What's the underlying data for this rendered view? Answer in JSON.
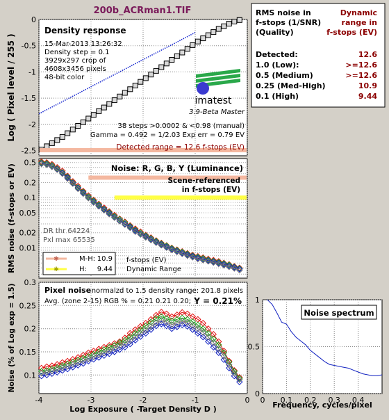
{
  "title": "200b_ACRman1.TIF",
  "info_table": {
    "head_left": [
      "RMS noise in",
      "f-stops (1/SNR)",
      "(Quality)"
    ],
    "head_right": [
      "Dynamic",
      "range in",
      "f-stops (EV)"
    ],
    "rows": [
      {
        "label": "Detected:",
        "value": "12.6"
      },
      {
        "label": "1.0  (Low):",
        "value": ">=12.6"
      },
      {
        "label": "0.5  (Medium)",
        "value": ">=12.6"
      },
      {
        "label": "0.25 (Med-High)",
        "value": "10.9"
      },
      {
        "label": "0.1  (High)",
        "value": "9.44"
      }
    ]
  },
  "colors": {
    "background": "#d4d0c8",
    "plot_bg": "#ffffff",
    "title_color": "#7a1a5a",
    "dark_red": "#8b0000",
    "red": "#e01010",
    "green": "#20a020",
    "blue": "#1020c0",
    "gray": "#707070",
    "salmon": "#f4b8a0",
    "yellow": "#ffff44"
  },
  "chart_data": [
    {
      "type": "line",
      "title": "Density response",
      "xlabel": "",
      "ylabel": "Log ( Pixel level / 255 )",
      "xlim": [
        -4,
        0
      ],
      "ylim": [
        -2.6,
        0
      ],
      "xticks": [
        "-4",
        "-3",
        "-2",
        "-1",
        "0"
      ],
      "yticks": [
        "0",
        "-0.5",
        "-1",
        "-1.5",
        "-2",
        "-2.5"
      ],
      "info_lines": [
        "15-Mar-2013 13:26:32",
        "Density step = 0.1",
        "3929x297 crop of",
        "4608x3456 pixels",
        "48-bit color"
      ],
      "logo": "imatest",
      "logo_caption": "3.9-Beta  Master",
      "stats_lines": [
        "38 steps >0.0002 & <0.98 (manual)",
        "Gamma = 0.492 = 1/2.03  Exp err = 0.79 EV"
      ],
      "detected_range": "Detected range = 12.6 f-stops (EV)",
      "series": [
        {
          "type": "squares",
          "x": [
            -3.95,
            -3.85,
            -3.75,
            -3.65,
            -3.55,
            -3.45,
            -3.35,
            -3.25,
            -3.15,
            -3.05,
            -2.95,
            -2.85,
            -2.75,
            -2.65,
            -2.55,
            -2.45,
            -2.35,
            -2.25,
            -2.15,
            -2.05,
            -1.95,
            -1.85,
            -1.75,
            -1.65,
            -1.55,
            -1.45,
            -1.35,
            -1.25,
            -1.15,
            -1.05,
            -0.95,
            -0.85,
            -0.75,
            -0.65,
            -0.55,
            -0.45,
            -0.35,
            -0.25,
            -0.15
          ],
          "y": [
            -2.48,
            -2.42,
            -2.36,
            -2.3,
            -2.24,
            -2.17,
            -2.1,
            -2.03,
            -1.96,
            -1.89,
            -1.82,
            -1.75,
            -1.68,
            -1.61,
            -1.54,
            -1.47,
            -1.4,
            -1.33,
            -1.26,
            -1.19,
            -1.12,
            -1.05,
            -0.98,
            -0.91,
            -0.84,
            -0.77,
            -0.7,
            -0.63,
            -0.56,
            -0.49,
            -0.42,
            -0.36,
            -0.3,
            -0.24,
            -0.18,
            -0.13,
            -0.08,
            -0.04,
            -0.01
          ]
        },
        {
          "type": "dotted-fit",
          "x": [
            -4.0,
            -1.0
          ],
          "y": [
            -1.8,
            -0.25
          ]
        }
      ]
    },
    {
      "type": "line",
      "title": "Noise: R, G, B, Y (Luminance)",
      "xlabel": "",
      "ylabel": "RMS noise (f-stops or EV)",
      "scale": "log",
      "xlim": [
        -4,
        0
      ],
      "ylim": [
        0.0025,
        0.6
      ],
      "yticks": [
        "0.5",
        "0.2",
        "0.1",
        "0.05",
        "0.02",
        "0.01"
      ],
      "annotations": [
        "Scene-referenced",
        "in f-stops (EV)"
      ],
      "dr_text": [
        "DR thr 64224",
        "Pxl max 65535"
      ],
      "legend": [
        {
          "name": "M-H:",
          "value": "10.9"
        },
        {
          "name": "H:",
          "value": "9.44"
        }
      ],
      "legend_caption": [
        "f-stops (EV)",
        "Dynamic Range"
      ],
      "threshold_bands": [
        {
          "name": "M-H",
          "y": 0.25,
          "x_start": -3.05
        },
        {
          "name": "H",
          "y": 0.1,
          "x_start": -2.55
        }
      ],
      "series": [
        {
          "name": "R",
          "x": [
            -3.95,
            -3.85,
            -3.75,
            -3.65,
            -3.55,
            -3.45,
            -3.35,
            -3.25,
            -3.15,
            -3.05,
            -2.95,
            -2.85,
            -2.75,
            -2.65,
            -2.55,
            -2.45,
            -2.35,
            -2.25,
            -2.15,
            -2.05,
            -1.95,
            -1.85,
            -1.75,
            -1.65,
            -1.55,
            -1.45,
            -1.35,
            -1.25,
            -1.15,
            -1.05,
            -0.95,
            -0.85,
            -0.75,
            -0.65,
            -0.55,
            -0.45,
            -0.35,
            -0.25,
            -0.15
          ],
          "y": [
            0.52,
            0.5,
            0.46,
            0.4,
            0.34,
            0.27,
            0.21,
            0.17,
            0.135,
            0.11,
            0.09,
            0.075,
            0.063,
            0.053,
            0.045,
            0.038,
            0.033,
            0.028,
            0.024,
            0.021,
            0.018,
            0.016,
            0.014,
            0.0125,
            0.0112,
            0.01,
            0.0092,
            0.0085,
            0.0078,
            0.0072,
            0.0068,
            0.0064,
            0.006,
            0.0057,
            0.0054,
            0.005,
            0.0047,
            0.0043,
            0.004
          ]
        },
        {
          "name": "G",
          "x": [
            -3.95,
            -3.85,
            -3.75,
            -3.65,
            -3.55,
            -3.45,
            -3.35,
            -3.25,
            -3.15,
            -3.05,
            -2.95,
            -2.85,
            -2.75,
            -2.65,
            -2.55,
            -2.45,
            -2.35,
            -2.25,
            -2.15,
            -2.05,
            -1.95,
            -1.85,
            -1.75,
            -1.65,
            -1.55,
            -1.45,
            -1.35,
            -1.25,
            -1.15,
            -1.05,
            -0.95,
            -0.85,
            -0.75,
            -0.65,
            -0.55,
            -0.45,
            -0.35,
            -0.25,
            -0.15
          ],
          "y": [
            0.5,
            0.48,
            0.44,
            0.38,
            0.32,
            0.26,
            0.2,
            0.16,
            0.13,
            0.105,
            0.087,
            0.072,
            0.06,
            0.051,
            0.043,
            0.037,
            0.032,
            0.027,
            0.023,
            0.02,
            0.0175,
            0.0155,
            0.0137,
            0.0122,
            0.011,
            0.0098,
            0.009,
            0.0083,
            0.0076,
            0.007,
            0.0066,
            0.0062,
            0.0058,
            0.0055,
            0.0052,
            0.0049,
            0.0046,
            0.0042,
            0.0039
          ]
        },
        {
          "name": "B",
          "x": [
            -3.95,
            -3.85,
            -3.75,
            -3.65,
            -3.55,
            -3.45,
            -3.35,
            -3.25,
            -3.15,
            -3.05,
            -2.95,
            -2.85,
            -2.75,
            -2.65,
            -2.55,
            -2.45,
            -2.35,
            -2.25,
            -2.15,
            -2.05,
            -1.95,
            -1.85,
            -1.75,
            -1.65,
            -1.55,
            -1.45,
            -1.35,
            -1.25,
            -1.15,
            -1.05,
            -0.95,
            -0.85,
            -0.75,
            -0.65,
            -0.55,
            -0.45,
            -0.35,
            -0.25,
            -0.15
          ],
          "y": [
            0.48,
            0.46,
            0.42,
            0.37,
            0.31,
            0.25,
            0.195,
            0.155,
            0.125,
            0.1,
            0.083,
            0.069,
            0.058,
            0.049,
            0.041,
            0.035,
            0.03,
            0.026,
            0.022,
            0.019,
            0.0168,
            0.0148,
            0.0131,
            0.0117,
            0.0105,
            0.0094,
            0.0086,
            0.0079,
            0.0073,
            0.0068,
            0.0063,
            0.0059,
            0.0056,
            0.0053,
            0.005,
            0.0047,
            0.0044,
            0.0041,
            0.0038
          ]
        },
        {
          "name": "Y",
          "x": [
            -3.95,
            -3.85,
            -3.75,
            -3.65,
            -3.55,
            -3.45,
            -3.35,
            -3.25,
            -3.15,
            -3.05,
            -2.95,
            -2.85,
            -2.75,
            -2.65,
            -2.55,
            -2.45,
            -2.35,
            -2.25,
            -2.15,
            -2.05,
            -1.95,
            -1.85,
            -1.75,
            -1.65,
            -1.55,
            -1.45,
            -1.35,
            -1.25,
            -1.15,
            -1.05,
            -0.95,
            -0.85,
            -0.75,
            -0.65,
            -0.55,
            -0.45,
            -0.35,
            -0.25,
            -0.15
          ],
          "y": [
            0.47,
            0.45,
            0.41,
            0.36,
            0.3,
            0.24,
            0.19,
            0.15,
            0.12,
            0.098,
            0.08,
            0.067,
            0.056,
            0.047,
            0.04,
            0.034,
            0.029,
            0.025,
            0.021,
            0.0185,
            0.0162,
            0.0143,
            0.0127,
            0.0113,
            0.0101,
            0.0091,
            0.0083,
            0.0076,
            0.007,
            0.0065,
            0.006,
            0.0057,
            0.0054,
            0.0051,
            0.0048,
            0.0045,
            0.0042,
            0.0039,
            0.0036
          ]
        }
      ]
    },
    {
      "type": "line",
      "title": "Pixel noise",
      "subtitle": "normalzd to 1.5 density range: 201.8 pixels",
      "avg_line": "Avg. (zone 2-15) RGB % = 0.21  0.21  0.20;",
      "y_value": "Y = 0.21%",
      "xlabel": "Log Exposure ( -Target Density D )",
      "ylabel": "Noise (% of Log exp = 1.5)",
      "xlim": [
        -4,
        0
      ],
      "ylim": [
        0.06,
        0.3
      ],
      "xticks": [
        "-4",
        "-3",
        "-2",
        "-1",
        "0"
      ],
      "yticks": [
        "0.3",
        "0.25",
        "0.2",
        "0.15",
        "0.1"
      ],
      "series": [
        {
          "name": "R",
          "x": [
            -3.95,
            -3.85,
            -3.75,
            -3.65,
            -3.55,
            -3.45,
            -3.35,
            -3.25,
            -3.15,
            -3.05,
            -2.95,
            -2.85,
            -2.75,
            -2.65,
            -2.55,
            -2.45,
            -2.35,
            -2.25,
            -2.15,
            -2.05,
            -1.95,
            -1.85,
            -1.75,
            -1.65,
            -1.55,
            -1.45,
            -1.35,
            -1.25,
            -1.15,
            -1.05,
            -0.95,
            -0.85,
            -0.75,
            -0.65,
            -0.55,
            -0.45,
            -0.35,
            -0.25,
            -0.15
          ],
          "y": [
            0.115,
            0.118,
            0.12,
            0.123,
            0.127,
            0.13,
            0.134,
            0.138,
            0.143,
            0.148,
            0.152,
            0.156,
            0.16,
            0.164,
            0.168,
            0.172,
            0.18,
            0.19,
            0.198,
            0.205,
            0.212,
            0.22,
            0.229,
            0.236,
            0.232,
            0.226,
            0.23,
            0.235,
            0.232,
            0.226,
            0.22,
            0.212,
            0.2,
            0.188,
            0.172,
            0.152,
            0.13,
            0.11,
            0.095
          ]
        },
        {
          "name": "G",
          "x": [
            -3.95,
            -3.85,
            -3.75,
            -3.65,
            -3.55,
            -3.45,
            -3.35,
            -3.25,
            -3.15,
            -3.05,
            -2.95,
            -2.85,
            -2.75,
            -2.65,
            -2.55,
            -2.45,
            -2.35,
            -2.25,
            -2.15,
            -2.05,
            -1.95,
            -1.85,
            -1.75,
            -1.65,
            -1.55,
            -1.45,
            -1.35,
            -1.25,
            -1.15,
            -1.05,
            -0.95,
            -0.85,
            -0.75,
            -0.65,
            -0.55,
            -0.45,
            -0.35,
            -0.25,
            -0.15
          ],
          "y": [
            0.108,
            0.11,
            0.113,
            0.116,
            0.12,
            0.124,
            0.128,
            0.132,
            0.136,
            0.14,
            0.145,
            0.15,
            0.155,
            0.16,
            0.164,
            0.17,
            0.175,
            0.182,
            0.19,
            0.198,
            0.206,
            0.214,
            0.222,
            0.226,
            0.222,
            0.217,
            0.22,
            0.223,
            0.22,
            0.215,
            0.208,
            0.2,
            0.19,
            0.178,
            0.165,
            0.148,
            0.128,
            0.108,
            0.093
          ]
        },
        {
          "name": "B",
          "x": [
            -3.95,
            -3.85,
            -3.75,
            -3.65,
            -3.55,
            -3.45,
            -3.35,
            -3.25,
            -3.15,
            -3.05,
            -2.95,
            -2.85,
            -2.75,
            -2.65,
            -2.55,
            -2.45,
            -2.35,
            -2.25,
            -2.15,
            -2.05,
            -1.95,
            -1.85,
            -1.75,
            -1.65,
            -1.55,
            -1.45,
            -1.35,
            -1.25,
            -1.15,
            -1.05,
            -0.95,
            -0.85,
            -0.75,
            -0.65,
            -0.55,
            -0.45,
            -0.35,
            -0.25,
            -0.15
          ],
          "y": [
            0.098,
            0.1,
            0.103,
            0.106,
            0.11,
            0.113,
            0.117,
            0.121,
            0.125,
            0.13,
            0.134,
            0.138,
            0.142,
            0.146,
            0.15,
            0.155,
            0.16,
            0.167,
            0.175,
            0.183,
            0.19,
            0.198,
            0.206,
            0.21,
            0.206,
            0.2,
            0.204,
            0.208,
            0.205,
            0.198,
            0.19,
            0.182,
            0.172,
            0.16,
            0.148,
            0.133,
            0.115,
            0.098,
            0.085
          ]
        },
        {
          "name": "Y",
          "x": [
            -3.95,
            -3.85,
            -3.75,
            -3.65,
            -3.55,
            -3.45,
            -3.35,
            -3.25,
            -3.15,
            -3.05,
            -2.95,
            -2.85,
            -2.75,
            -2.65,
            -2.55,
            -2.45,
            -2.35,
            -2.25,
            -2.15,
            -2.05,
            -1.95,
            -1.85,
            -1.75,
            -1.65,
            -1.55,
            -1.45,
            -1.35,
            -1.25,
            -1.15,
            -1.05,
            -0.95,
            -0.85,
            -0.75,
            -0.65,
            -0.55,
            -0.45,
            -0.35,
            -0.25,
            -0.15
          ],
          "y": [
            0.104,
            0.106,
            0.109,
            0.112,
            0.116,
            0.119,
            0.123,
            0.127,
            0.131,
            0.135,
            0.14,
            0.144,
            0.148,
            0.153,
            0.158,
            0.163,
            0.168,
            0.175,
            0.183,
            0.19,
            0.197,
            0.205,
            0.213,
            0.218,
            0.214,
            0.209,
            0.212,
            0.216,
            0.213,
            0.207,
            0.2,
            0.192,
            0.182,
            0.17,
            0.157,
            0.141,
            0.122,
            0.104,
            0.09
          ]
        }
      ]
    },
    {
      "type": "line",
      "title": "Noise spectrum",
      "xlabel": "Frequency, cycles/pixel",
      "ylabel": "",
      "xlim": [
        0,
        0.5
      ],
      "ylim": [
        0,
        1
      ],
      "xticks": [
        "0",
        "0.1",
        "0.2",
        "0.3",
        "0.4"
      ],
      "yticks": [
        "1",
        "0.5",
        "0"
      ],
      "series": [
        {
          "name": "spectrum",
          "x": [
            0.02,
            0.04,
            0.06,
            0.08,
            0.1,
            0.12,
            0.14,
            0.16,
            0.18,
            0.2,
            0.22,
            0.24,
            0.26,
            0.28,
            0.3,
            0.32,
            0.34,
            0.36,
            0.38,
            0.4,
            0.42,
            0.44,
            0.46,
            0.48,
            0.5
          ],
          "y": [
            1.0,
            0.95,
            0.86,
            0.76,
            0.74,
            0.66,
            0.6,
            0.56,
            0.52,
            0.46,
            0.42,
            0.38,
            0.34,
            0.31,
            0.3,
            0.29,
            0.28,
            0.27,
            0.25,
            0.23,
            0.21,
            0.2,
            0.19,
            0.19,
            0.2
          ]
        }
      ]
    }
  ]
}
